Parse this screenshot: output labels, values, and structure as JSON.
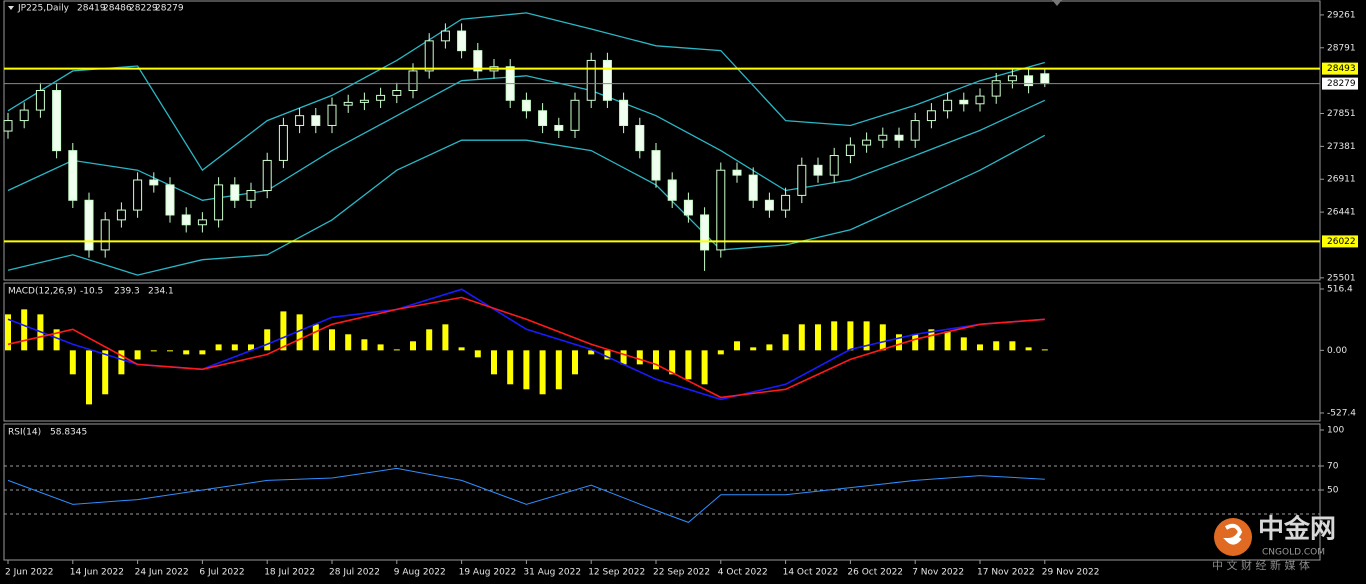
{
  "chart_data": [
    {
      "type": "candlestick",
      "title": "JP225,Daily",
      "ohlc": [
        [
          27600,
          27860,
          27490,
          27750
        ],
        [
          27750,
          28010,
          27640,
          27900
        ],
        [
          27900,
          28290,
          27790,
          28180
        ],
        [
          28180,
          28290,
          27210,
          27320
        ],
        [
          27320,
          27430,
          26500,
          26610
        ],
        [
          26610,
          26720,
          25790,
          25900
        ],
        [
          25900,
          26440,
          25790,
          26330
        ],
        [
          26330,
          26580,
          26220,
          26470
        ],
        [
          26470,
          27010,
          26360,
          26900
        ],
        [
          26900,
          27010,
          26720,
          26830
        ],
        [
          26830,
          26940,
          26290,
          26400
        ],
        [
          26400,
          26510,
          26150,
          26260
        ],
        [
          26260,
          26440,
          26150,
          26330
        ],
        [
          26330,
          26940,
          26220,
          26830
        ],
        [
          26830,
          26940,
          26500,
          26610
        ],
        [
          26610,
          26860,
          26500,
          26750
        ],
        [
          26750,
          27290,
          26640,
          27180
        ],
        [
          27180,
          27790,
          27070,
          27680
        ],
        [
          27680,
          27930,
          27570,
          27820
        ],
        [
          27820,
          27930,
          27570,
          27680
        ],
        [
          27680,
          28080,
          27570,
          27970
        ],
        [
          27970,
          28120,
          27860,
          28010
        ],
        [
          28010,
          28150,
          27900,
          28040
        ],
        [
          28040,
          28220,
          27930,
          28110
        ],
        [
          28110,
          28290,
          28000,
          28180
        ],
        [
          28180,
          28570,
          28070,
          28460
        ],
        [
          28460,
          29000,
          28350,
          28890
        ],
        [
          28890,
          29140,
          28780,
          29030
        ],
        [
          29030,
          29140,
          28640,
          28750
        ],
        [
          28750,
          28860,
          28350,
          28460
        ],
        [
          28460,
          28630,
          28350,
          28520
        ],
        [
          28520,
          28630,
          27930,
          28040
        ],
        [
          28040,
          28150,
          27780,
          27890
        ],
        [
          27890,
          28000,
          27570,
          27680
        ],
        [
          27680,
          27790,
          27500,
          27610
        ],
        [
          27610,
          28150,
          27500,
          28040
        ],
        [
          28040,
          28720,
          27930,
          28610
        ],
        [
          28610,
          28720,
          27930,
          28040
        ],
        [
          28040,
          28150,
          27570,
          27680
        ],
        [
          27680,
          27790,
          27210,
          27320
        ],
        [
          27320,
          27430,
          26790,
          26900
        ],
        [
          26900,
          27010,
          26500,
          26610
        ],
        [
          26610,
          26720,
          26290,
          26400
        ],
        [
          26400,
          26510,
          25600,
          25900
        ],
        [
          25900,
          27150,
          25790,
          27040
        ],
        [
          27040,
          27150,
          26860,
          26970
        ],
        [
          26970,
          27080,
          26500,
          26610
        ],
        [
          26610,
          26720,
          26360,
          26470
        ],
        [
          26470,
          26790,
          26360,
          26680
        ],
        [
          26680,
          27220,
          26570,
          27110
        ],
        [
          27110,
          27220,
          26860,
          26970
        ],
        [
          26970,
          27360,
          26860,
          27250
        ],
        [
          27250,
          27510,
          27140,
          27400
        ],
        [
          27400,
          27580,
          27290,
          27470
        ],
        [
          27470,
          27650,
          27360,
          27540
        ],
        [
          27540,
          27650,
          27360,
          27470
        ],
        [
          27470,
          27860,
          27360,
          27750
        ],
        [
          27750,
          28000,
          27640,
          27890
        ],
        [
          27890,
          28150,
          27780,
          28040
        ],
        [
          28040,
          28150,
          27880,
          27990
        ],
        [
          27990,
          28210,
          27880,
          28100
        ],
        [
          28100,
          28430,
          27990,
          28320
        ],
        [
          28320,
          28500,
          28210,
          28390
        ],
        [
          28390,
          28500,
          28140,
          28250
        ],
        [
          28419,
          28486,
          28229,
          28279
        ]
      ],
      "up_color": "#000000",
      "down_color": "#f0fff0",
      "wick_color": "#ccffcc",
      "bollinger": {
        "color": "#2ab7c6",
        "x": [
          0,
          4,
          8,
          12,
          16,
          20,
          24,
          28,
          32,
          36,
          40,
          44,
          48,
          52,
          56,
          60,
          64
        ],
        "upper": [
          27890,
          28460,
          28530,
          27040,
          27750,
          28110,
          28610,
          29200,
          29290,
          29060,
          28820,
          28750,
          27750,
          27680,
          27970,
          28320,
          28580
        ],
        "middle": [
          26750,
          27180,
          27040,
          26610,
          26750,
          27320,
          27820,
          28320,
          28390,
          28180,
          27820,
          27320,
          26750,
          26900,
          27250,
          27610,
          28040
        ],
        "lower": [
          25610,
          25830,
          25540,
          25760,
          25830,
          26330,
          27040,
          27470,
          27470,
          27320,
          26830,
          25900,
          25970,
          26190,
          26610,
          27040,
          27540
        ]
      },
      "levels": [
        {
          "value": 28493,
          "color": "#ffff00"
        },
        {
          "value": 26022,
          "color": "#ffff00"
        }
      ],
      "current_line_color": "#8a8a8a",
      "ylim": [
        25470,
        29460
      ],
      "yticks": [
        29261,
        28791,
        27851,
        27381,
        26911,
        26441,
        25501
      ],
      "xticks": [
        {
          "value": 0,
          "label": "2 Jun 2022"
        },
        {
          "value": 4,
          "label": "14 Jun 2022"
        },
        {
          "value": 8,
          "label": "24 Jun 2022"
        },
        {
          "value": 12,
          "label": "6 Jul 2022"
        },
        {
          "value": 16,
          "label": "18 Jul 2022"
        },
        {
          "value": 20,
          "label": "28 Jul 2022"
        },
        {
          "value": 24,
          "label": "9 Aug 2022"
        },
        {
          "value": 28,
          "label": "19 Aug 2022"
        },
        {
          "value": 32,
          "label": "31 Aug 2022"
        },
        {
          "value": 36,
          "label": "12 Sep 2022"
        },
        {
          "value": 40,
          "label": "22 Sep 2022"
        },
        {
          "value": 44,
          "label": "4 Oct 2022"
        },
        {
          "value": 48,
          "label": "14 Oct 2022"
        },
        {
          "value": 52,
          "label": "26 Oct 2022"
        },
        {
          "value": 56,
          "label": "7 Nov 2022"
        },
        {
          "value": 60,
          "label": "17 Nov 2022"
        },
        {
          "value": 64,
          "label": "29 Nov 2022"
        }
      ]
    },
    {
      "type": "macd",
      "title": "MACD(12,26,9)",
      "readout": [
        -10.5,
        239.3,
        234.1
      ],
      "histogram": {
        "color": "#ffff00",
        "values": [
          303,
          345,
          303,
          177,
          -202,
          -455,
          -370,
          -202,
          -76,
          -8,
          -8,
          -34,
          -34,
          50,
          50,
          50,
          177,
          328,
          303,
          219,
          177,
          135,
          93,
          50,
          8,
          76,
          177,
          219,
          25,
          -59,
          -202,
          -286,
          -328,
          -370,
          -328,
          -202,
          -34,
          -76,
          -118,
          -118,
          -160,
          -202,
          -244,
          -286,
          -34,
          76,
          25,
          50,
          135,
          219,
          219,
          244,
          244,
          244,
          219,
          135,
          135,
          177,
          160,
          109,
          50,
          76,
          76,
          25,
          8
        ]
      },
      "x": [
        0,
        4,
        8,
        12,
        16,
        20,
        24,
        28,
        32,
        36,
        40,
        44,
        48,
        52,
        56,
        60,
        64
      ],
      "series": [
        {
          "color": "#1a1aff",
          "values": [
            261,
            51,
            -118,
            -160,
            51,
            278,
            345,
            514,
            177,
            8,
            -244,
            -413,
            -286,
            8,
            135,
            219,
            261
          ]
        },
        {
          "color": "#ff1a1a",
          "values": [
            51,
            177,
            -118,
            -160,
            -34,
            219,
            345,
            446,
            261,
            51,
            -118,
            -396,
            -328,
            -76,
            93,
            219,
            261
          ]
        }
      ],
      "ylim": [
        -595,
        567
      ],
      "yticks": [
        516.4,
        {
          "value": 0,
          "label": "0.00"
        },
        -527.4
      ]
    },
    {
      "type": "rsi",
      "title": "RSI(14)",
      "readout": 58.8345,
      "x": [
        0,
        4,
        8,
        12,
        16,
        20,
        24,
        28,
        32,
        36,
        40,
        42,
        44,
        48,
        52,
        56,
        60,
        64
      ],
      "values": [
        58,
        38,
        42,
        50,
        58,
        60,
        68,
        58,
        38,
        54,
        33,
        23,
        46,
        46,
        52,
        58,
        62,
        59
      ],
      "color": "#2f8fff",
      "levels": [
        70,
        50,
        30
      ],
      "ylim": [
        0,
        100
      ],
      "yticks": [
        100,
        70,
        50
      ]
    }
  ],
  "watermark": {
    "brand": "中金网",
    "site": "CNGOLD.COM",
    "slogan": "中 文 财 经 新 媒 体"
  }
}
